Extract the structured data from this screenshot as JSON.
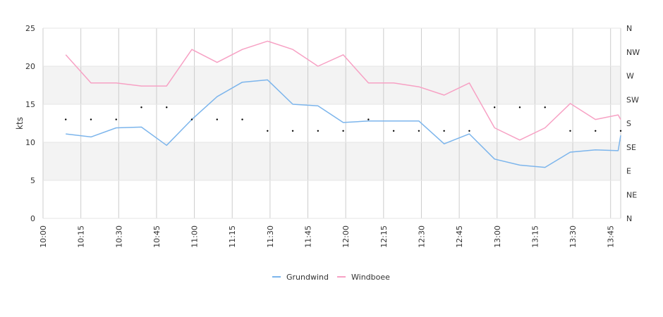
{
  "chart_data": {
    "type": "line",
    "ylabel": "kts",
    "ylim": [
      0,
      25
    ],
    "yticks": [
      "0",
      "5",
      "10",
      "15",
      "20",
      "25"
    ],
    "xlim": [
      "10:00",
      "13:49"
    ],
    "xticks": [
      "10:00",
      "10:15",
      "10:30",
      "10:45",
      "11:00",
      "11:15",
      "11:30",
      "11:45",
      "12:00",
      "12:15",
      "12:30",
      "12:45",
      "13:00",
      "13:15",
      "13:30",
      "13:45"
    ],
    "right_axis_labels": [
      "N",
      "NE",
      "E",
      "SE",
      "S",
      "SW",
      "W",
      "NW",
      "N"
    ],
    "legend_position": "bottom-center",
    "grid": true,
    "x": [
      "10:09",
      "10:19",
      "10:29",
      "10:39",
      "10:49",
      "10:59",
      "11:09",
      "11:19",
      "11:29",
      "11:39",
      "11:49",
      "11:59",
      "12:09",
      "12:19",
      "12:29",
      "12:39",
      "12:49",
      "12:59",
      "13:09",
      "13:19",
      "13:29",
      "13:39",
      "13:48",
      "13:49"
    ],
    "series": [
      {
        "name": "Grundwind",
        "color": "#7cb5ec",
        "values": [
          11.1,
          10.7,
          11.9,
          12.0,
          9.6,
          13.0,
          16.0,
          17.9,
          18.2,
          15.0,
          14.8,
          12.6,
          12.8,
          12.8,
          12.8,
          9.8,
          11.1,
          7.8,
          7.0,
          6.7,
          8.7,
          9.0,
          8.9,
          10.9
        ]
      },
      {
        "name": "Windboee",
        "color": "#f7a1c4",
        "values": [
          21.5,
          17.8,
          17.8,
          17.4,
          17.4,
          22.2,
          20.5,
          22.2,
          23.3,
          22.2,
          20.0,
          21.5,
          17.8,
          17.8,
          17.3,
          16.2,
          17.8,
          11.9,
          10.3,
          11.9,
          15.1,
          13.0,
          13.6,
          13.0
        ]
      }
    ],
    "direction": {
      "x": [
        "10:09",
        "10:19",
        "10:29",
        "10:39",
        "10:49",
        "10:59",
        "11:09",
        "11:19",
        "11:29",
        "11:39",
        "11:49",
        "11:59",
        "12:09",
        "12:19",
        "12:29",
        "12:39",
        "12:49",
        "12:59",
        "13:09",
        "13:19",
        "13:29",
        "13:39",
        "13:49"
      ],
      "values": [
        13.0,
        13.0,
        13.0,
        14.6,
        14.6,
        13.0,
        13.0,
        13.0,
        11.5,
        11.5,
        11.5,
        11.5,
        13.0,
        11.5,
        11.5,
        11.5,
        11.5,
        14.6,
        14.6,
        14.6,
        11.5,
        11.5,
        11.5
      ]
    }
  }
}
